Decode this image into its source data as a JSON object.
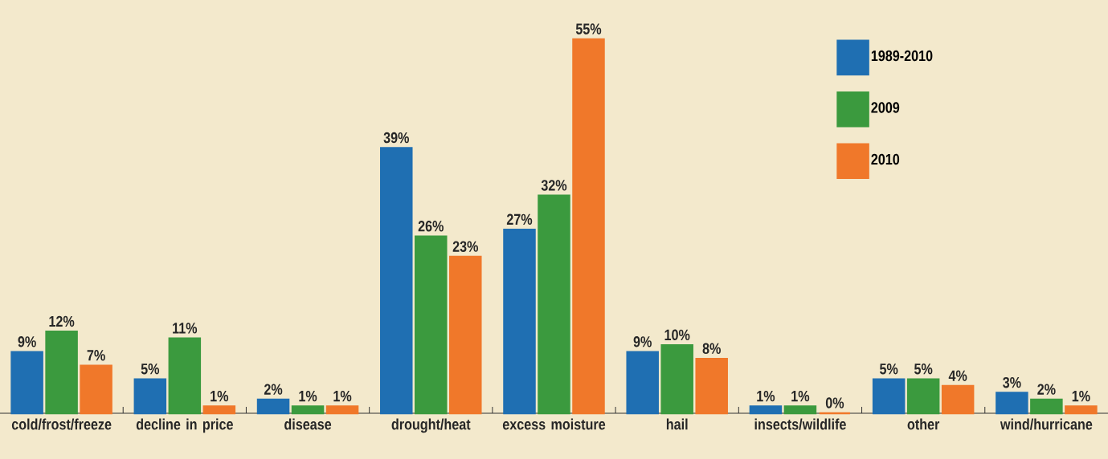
{
  "chart_data": {
    "type": "bar",
    "categories": [
      "cold/frost/freeze",
      "decline in price",
      "disease",
      "drought/heat",
      "excess moisture",
      "hail",
      "insects/wildlife",
      "other",
      "wind/hurricane"
    ],
    "series": [
      {
        "name": "1989-2010",
        "color": "#1f6fb2",
        "values": [
          9,
          5,
          2,
          39,
          27,
          9,
          1,
          5,
          3
        ],
        "value_labels": [
          "9%",
          "5%",
          "2%",
          "39%",
          "27%",
          "9%",
          "1%",
          "5%",
          "3%"
        ]
      },
      {
        "name": "2009",
        "color": "#3b9a3e",
        "values": [
          12,
          11,
          1,
          26,
          32,
          10,
          1,
          5,
          2
        ],
        "value_labels": [
          "12%",
          "11%",
          "1%",
          "26%",
          "32%",
          "10%",
          "1%",
          "5%",
          "2%"
        ]
      },
      {
        "name": "2010",
        "color": "#f0782a",
        "values": [
          7,
          1,
          1,
          23,
          55,
          8,
          0,
          4,
          1
        ],
        "value_labels": [
          "7%",
          "1%",
          "1%",
          "23%",
          "55%",
          "8%",
          "0%",
          "4%",
          "1%"
        ]
      }
    ],
    "legend": "top right"
  }
}
